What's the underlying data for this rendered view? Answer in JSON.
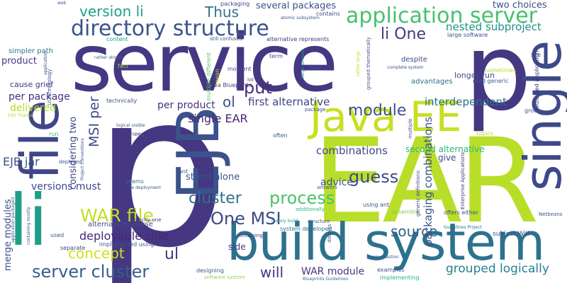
{
  "words": [
    {
      "text": "p",
      "color": "#453781"
    },
    {
      "text": "EAR",
      "color": "#b8de29"
    },
    {
      "text": "service",
      "color": "#453781"
    },
    {
      "text": "p",
      "color": "#453781"
    },
    {
      "text": "build system",
      "color": "#2c728e"
    },
    {
      "text": "EJB",
      "color": "#3b528b"
    },
    {
      "text": "li",
      "color": "#1f9e89"
    },
    {
      "text": "file",
      "color": "#404688"
    },
    {
      "text": "single",
      "color": "#3e4989"
    },
    {
      "text": "Java EE",
      "color": "#c8e020"
    },
    {
      "text": "application server",
      "color": "#48c16e"
    },
    {
      "text": "directory structure",
      "color": "#39558c"
    },
    {
      "text": "version li",
      "color": "#1fa088"
    },
    {
      "text": "Thus",
      "color": "#2c738e"
    },
    {
      "text": "put",
      "color": "#472d7b"
    },
    {
      "text": "li One",
      "color": "#453781"
    },
    {
      "text": "WAR file",
      "color": "#c2df23"
    },
    {
      "text": "One MSI",
      "color": "#3f4788"
    },
    {
      "text": "server cluster",
      "color": "#365d8d"
    },
    {
      "text": "concept",
      "color": "#d0e11c"
    },
    {
      "text": "cluster",
      "color": "#2c728e"
    },
    {
      "text": "process",
      "color": "#4ac16d"
    },
    {
      "text": "guess",
      "color": "#3e4989"
    },
    {
      "text": "module",
      "color": "#3b528b"
    },
    {
      "text": "source",
      "color": "#355f8d"
    },
    {
      "text": "ul",
      "color": "#453781"
    },
    {
      "text": "ol",
      "color": "#3b528b"
    },
    {
      "text": "will",
      "color": "#46337e"
    },
    {
      "text": "single EAR",
      "color": "#482475"
    },
    {
      "text": "MSI per",
      "color": "#3e4989"
    },
    {
      "text": "EJB jar",
      "color": "#3b528b"
    },
    {
      "text": "grouped logically",
      "color": "#27808e"
    },
    {
      "text": "WAR module",
      "color": "#453781"
    },
    {
      "text": "deployable side",
      "color": "#482878"
    },
    {
      "text": "nested subproject",
      "color": "#21918c"
    },
    {
      "text": "first alternative",
      "color": "#414487"
    },
    {
      "text": "combinations",
      "color": "#3e4a89"
    },
    {
      "text": "packaging combinations",
      "color": "#3b528b"
    },
    {
      "text": "interdependent",
      "color": "#2d708e"
    },
    {
      "text": "advice",
      "color": "#3a538b"
    },
    {
      "text": "versions must",
      "color": "#3f4788"
    },
    {
      "text": "delivered",
      "color": "#b5de2b"
    },
    {
      "text": "per package",
      "color": "#46307e"
    },
    {
      "text": "per product",
      "color": "#46327e"
    },
    {
      "text": "considering two",
      "color": "#3f4788"
    },
    {
      "text": "two choices",
      "color": "#3b528b"
    },
    {
      "text": "several packages",
      "color": "#3b528b"
    },
    {
      "text": "stand alone",
      "color": "#3b528b"
    },
    {
      "text": "second alternative",
      "color": "#2fb47c"
    },
    {
      "text": "product",
      "color": "#453781"
    },
    {
      "text": "cause grief",
      "color": "#46327e"
    },
    {
      "text": "merge modules",
      "color": "#3b528b"
    },
    {
      "text": "side",
      "color": "#453781"
    },
    {
      "text": "give",
      "color": "#3e4a89"
    },
    {
      "text": "simpler path",
      "color": "#2c728e"
    },
    {
      "text": "alternatives cause",
      "color": "#3b528b"
    },
    {
      "text": "longer run",
      "color": "#3e4989"
    },
    {
      "text": "despite",
      "color": "#3e4989"
    },
    {
      "text": "advantages",
      "color": "#2d708e"
    },
    {
      "text": "packaging",
      "color": "#3e4989"
    },
    {
      "text": "contains",
      "color": "#3f4788"
    },
    {
      "text": "large software",
      "color": "#3b528b"
    },
    {
      "text": "still confused",
      "color": "#3b528b"
    },
    {
      "text": "alternative represents",
      "color": "#453781"
    },
    {
      "text": "atomic subsystem",
      "color": "#39568c"
    },
    {
      "text": "rather atomic",
      "color": "#355f8d"
    },
    {
      "text": "Java Blueprints",
      "color": "#443a83"
    },
    {
      "text": "multiple different",
      "color": "#5ec962"
    },
    {
      "text": "system developed",
      "color": "#2c728e"
    },
    {
      "text": "implemented using",
      "color": "#3b528b"
    },
    {
      "text": "exactly one",
      "color": "#46307e"
    },
    {
      "text": "merely build",
      "color": "#1f9e89"
    },
    {
      "text": "structure",
      "color": "#3b528b"
    },
    {
      "text": "containing",
      "color": "#46307e"
    },
    {
      "text": "separate",
      "color": "#3e4989"
    },
    {
      "text": "used",
      "color": "#3b528b"
    },
    {
      "text": "designing",
      "color": "#3b528b"
    },
    {
      "text": "software system",
      "color": "#8fd744"
    },
    {
      "text": "Blueprints Guidelines",
      "color": "#2c728e"
    },
    {
      "text": "examples",
      "color": "#3b528b"
    },
    {
      "text": "main question",
      "color": "#3b528b"
    },
    {
      "text": "implementing",
      "color": "#29af7f"
    },
    {
      "text": "dismiss",
      "color": "#3e4989"
    },
    {
      "text": "using ant",
      "color": "#3b528b"
    },
    {
      "text": "offers either",
      "color": "#3b528b"
    },
    {
      "text": "subject Will",
      "color": "#3b528b"
    },
    {
      "text": "Guidelines Project",
      "color": "#2c728e"
    },
    {
      "text": "Netbeans",
      "color": "#3b528b"
    },
    {
      "text": "dedicated application",
      "color": "#453781"
    },
    {
      "text": "Enterprise Applications",
      "color": "#46307e"
    },
    {
      "text": "group",
      "color": "#3b528b"
    },
    {
      "text": "topics",
      "color": "#b5de2b"
    },
    {
      "text": "assemble",
      "color": "#7ad151"
    },
    {
      "text": "multiple",
      "color": "#3b528b"
    },
    {
      "text": "generic definitions",
      "color": "#3f4788"
    },
    {
      "text": "answers",
      "color": "#39568c"
    },
    {
      "text": "additionally",
      "color": "#2fb47c"
    },
    {
      "text": "often",
      "color": "#3b528b"
    },
    {
      "text": "ant",
      "color": "#3b528b"
    },
    {
      "text": "seems",
      "color": "#2c728e"
    },
    {
      "text": "one deployment",
      "color": "#3b528b"
    },
    {
      "text": "deployed",
      "color": "#3b528b"
    },
    {
      "text": "need",
      "color": "#3b528b"
    },
    {
      "text": "run",
      "color": "#2fb47c"
    },
    {
      "text": "logical visible",
      "color": "#3b528b"
    },
    {
      "text": "package",
      "color": "#3e4989"
    },
    {
      "text": "technically",
      "color": "#3b528b"
    },
    {
      "text": "moment",
      "color": "#3b528b"
    },
    {
      "text": "lot",
      "color": "#3b528b"
    },
    {
      "text": "mean",
      "color": "#b8de29"
    },
    {
      "text": "fact",
      "color": "#8fd744"
    },
    {
      "text": "rather large",
      "color": "#b5de2b"
    },
    {
      "text": "large amount",
      "color": "#1f9e89"
    },
    {
      "text": "well",
      "color": "#3b528b"
    },
    {
      "text": "term",
      "color": "#3b528b"
    },
    {
      "text": "grouped thematically",
      "color": "#3b528b"
    },
    {
      "text": "complete system",
      "color": "#3b528b"
    },
    {
      "text": "sometimes",
      "color": "#b5de2b"
    },
    {
      "text": "read generic",
      "color": "#39568c"
    },
    {
      "text": "see",
      "color": "#3b528b"
    },
    {
      "text": "content",
      "color": "#1f9e89"
    },
    {
      "text": "web",
      "color": "#3b528b"
    },
    {
      "text": "UI terminology",
      "color": "#3b528b"
    },
    {
      "text": "application",
      "color": "#3b528b"
    },
    {
      "text": "Edit Thanks",
      "color": "#b8de29"
    },
    {
      "text": "Project Conventions",
      "color": "#3b528b"
    },
    {
      "text": "application packaged",
      "color": "#3b528b"
    },
    {
      "text": "containing mostly",
      "color": "#3b528b"
    }
  ]
}
